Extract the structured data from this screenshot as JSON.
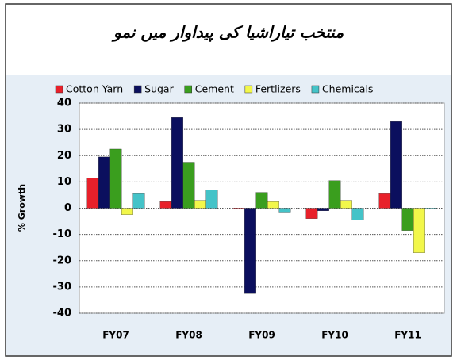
{
  "chart_data": {
    "type": "bar",
    "title": "منتخب تیاراشیا کی پیداوار میں نمو",
    "ylabel": "% Growth",
    "categories": [
      "FY07",
      "FY08",
      "FY09",
      "FY10",
      "FY11"
    ],
    "series": [
      {
        "name": "Cotton Yarn",
        "color": "#e8202a",
        "values": [
          11.5,
          2.5,
          -0.3,
          -4,
          5.5
        ]
      },
      {
        "name": "Sugar",
        "color": "#0b0f5e",
        "values": [
          19.5,
          34.5,
          -32.5,
          -1,
          33
        ]
      },
      {
        "name": "Cement",
        "color": "#3a9e1e",
        "values": [
          22.5,
          17.5,
          6,
          10.5,
          -8.5
        ]
      },
      {
        "name": "Fertlizers",
        "color": "#f2f74a",
        "values": [
          -2.5,
          3,
          2.5,
          3,
          -17
        ]
      },
      {
        "name": "Chemicals",
        "color": "#44c3c8",
        "values": [
          5.5,
          7,
          -1.5,
          -4.5,
          -0.3
        ]
      }
    ],
    "ylim": [
      -40,
      40
    ],
    "yticks": [
      -40,
      -30,
      -20,
      -10,
      0,
      10,
      20,
      30,
      40
    ],
    "grid": true
  }
}
